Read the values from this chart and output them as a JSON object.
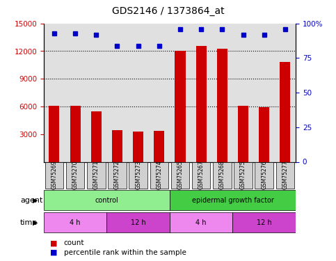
{
  "title": "GDS2146 / 1373864_at",
  "samples": [
    "GSM75269",
    "GSM75270",
    "GSM75271",
    "GSM75272",
    "GSM75273",
    "GSM75274",
    "GSM75265",
    "GSM75267",
    "GSM75268",
    "GSM75275",
    "GSM75276",
    "GSM75277"
  ],
  "counts": [
    6100,
    6050,
    5500,
    3400,
    3300,
    3350,
    12050,
    12600,
    12300,
    6100,
    5950,
    10800
  ],
  "percentiles": [
    93,
    93,
    92,
    84,
    84,
    84,
    96,
    96,
    96,
    92,
    92,
    96
  ],
  "bar_color": "#cc0000",
  "dot_color": "#0000cc",
  "ylim_left": [
    0,
    15000
  ],
  "ylim_right": [
    0,
    100
  ],
  "yticks_left": [
    3000,
    6000,
    9000,
    12000,
    15000
  ],
  "yticks_right": [
    0,
    25,
    50,
    75,
    100
  ],
  "grid_values": [
    6000,
    9000,
    12000
  ],
  "agent_labels": [
    {
      "label": "control",
      "start": 0,
      "end": 6,
      "color": "#90ee90"
    },
    {
      "label": "epidermal growth factor",
      "start": 6,
      "end": 12,
      "color": "#44cc44"
    }
  ],
  "time_labels": [
    {
      "label": "4 h",
      "start": 0,
      "end": 3,
      "color": "#ee88ee"
    },
    {
      "label": "12 h",
      "start": 3,
      "end": 6,
      "color": "#cc44cc"
    },
    {
      "label": "4 h",
      "start": 6,
      "end": 9,
      "color": "#ee88ee"
    },
    {
      "label": "12 h",
      "start": 9,
      "end": 12,
      "color": "#cc44cc"
    }
  ],
  "agent_row_label": "agent",
  "time_row_label": "time",
  "legend_count_color": "#cc0000",
  "legend_dot_color": "#0000cc",
  "bar_width": 0.5,
  "background_color": "#ffffff",
  "plot_bg_color": "#e0e0e0",
  "ylabel_left_color": "#cc0000",
  "ylabel_right_color": "#0000cc"
}
